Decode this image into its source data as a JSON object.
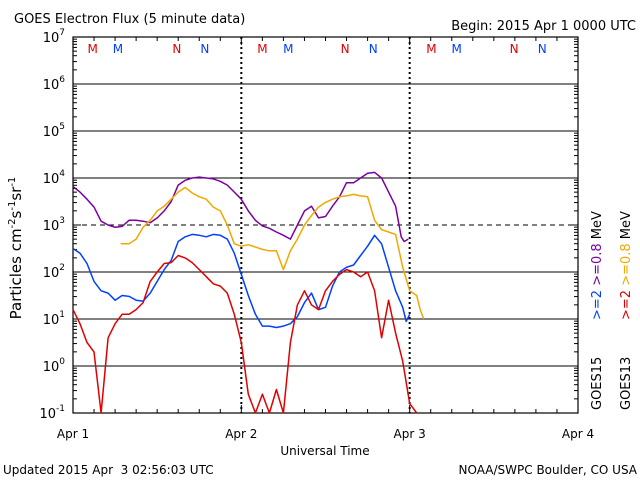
{
  "chart_data": {
    "type": "line",
    "title": "GOES Electron Flux (5 minute data)",
    "begin": "Begin: 2015 Apr 1 0000 UTC",
    "xlabel": "Universal Time",
    "ylabel_main": "Particles cm",
    "ylabel_exp1": "-2",
    "ylabel_mid1": "s",
    "ylabel_exp2": "-1",
    "ylabel_mid2": "sr",
    "ylabel_exp3": "-1",
    "footer_left": "Updated 2015 Apr  3 02:56:03 UTC",
    "footer_right": "NOAA/SWPC Boulder, CO USA",
    "x_range_hours": [
      0,
      72
    ],
    "x_ticks": [
      {
        "label": "Apr 1",
        "hour": 0
      },
      {
        "label": "Apr 2",
        "hour": 24
      },
      {
        "label": "Apr 3",
        "hour": 48
      },
      {
        "label": "Apr 4",
        "hour": 72
      }
    ],
    "y_log_range": [
      -1,
      7
    ],
    "y_ticks": [
      {
        "base": "10",
        "exp": "7",
        "e": 7
      },
      {
        "base": "10",
        "exp": "6",
        "e": 6
      },
      {
        "base": "10",
        "exp": "5",
        "e": 5
      },
      {
        "base": "10",
        "exp": "4",
        "e": 4
      },
      {
        "base": "10",
        "exp": "3",
        "e": 3
      },
      {
        "base": "10",
        "exp": "2",
        "e": 2
      },
      {
        "base": "10",
        "exp": "1",
        "e": 1
      },
      {
        "base": "10",
        "exp": "0",
        "e": 0
      },
      {
        "base": "10",
        "exp": "-1",
        "e": -1
      }
    ],
    "threshold_log": 3,
    "markers": [
      {
        "label": "M",
        "hour": 2.8,
        "color": "#e00000"
      },
      {
        "label": "M",
        "hour": 6.4,
        "color": "#0040ff"
      },
      {
        "label": "N",
        "hour": 14.8,
        "color": "#e00000"
      },
      {
        "label": "N",
        "hour": 18.8,
        "color": "#0040ff"
      },
      {
        "label": "M",
        "hour": 27.0,
        "color": "#e00000"
      },
      {
        "label": "M",
        "hour": 30.7,
        "color": "#0040ff"
      },
      {
        "label": "N",
        "hour": 38.8,
        "color": "#e00000"
      },
      {
        "label": "N",
        "hour": 42.8,
        "color": "#0040ff"
      },
      {
        "label": "M",
        "hour": 51.1,
        "color": "#e00000"
      },
      {
        "label": "M",
        "hour": 54.7,
        "color": "#0040ff"
      },
      {
        "label": "N",
        "hour": 62.9,
        "color": "#e00000"
      },
      {
        "label": "N",
        "hour": 66.9,
        "color": "#0040ff"
      }
    ],
    "legend_goes15": "GOES15",
    "legend_goes13": "GOES13",
    "legend": [
      {
        "label": ">=2",
        "unit": "",
        "color": "#0040ff",
        "column": 1
      },
      {
        "label": ">=0.8",
        "unit": "MeV",
        "color": "#7b00a0",
        "column": 1
      },
      {
        "label": ">=2",
        "unit": "",
        "color": "#e00000",
        "column": 2
      },
      {
        "label": ">=0.8",
        "unit": "MeV",
        "color": "#f0a800",
        "column": 2
      }
    ],
    "series": [
      {
        "name": "GOES15 >=0.8 MeV",
        "color": "#7b00a0",
        "points": [
          [
            0,
            3.82
          ],
          [
            1,
            3.7
          ],
          [
            2,
            3.55
          ],
          [
            3,
            3.38
          ],
          [
            4,
            3.08
          ],
          [
            5,
            3.0
          ],
          [
            6,
            2.95
          ],
          [
            7,
            2.97
          ],
          [
            8,
            3.1
          ],
          [
            9,
            3.1
          ],
          [
            10,
            3.08
          ],
          [
            11,
            3.05
          ],
          [
            12,
            3.15
          ],
          [
            13,
            3.3
          ],
          [
            14,
            3.5
          ],
          [
            15,
            3.85
          ],
          [
            16,
            3.95
          ],
          [
            17,
            4.0
          ],
          [
            18,
            4.02
          ],
          [
            19,
            4.0
          ],
          [
            20,
            3.98
          ],
          [
            21,
            3.93
          ],
          [
            22,
            3.85
          ],
          [
            23,
            3.7
          ],
          [
            24,
            3.55
          ],
          [
            25,
            3.3
          ],
          [
            26,
            3.1
          ],
          [
            27,
            2.98
          ],
          [
            28,
            2.93
          ],
          [
            29,
            2.85
          ],
          [
            30,
            2.78
          ],
          [
            31,
            2.7
          ],
          [
            32,
            3.0
          ],
          [
            33,
            3.3
          ],
          [
            34,
            3.4
          ],
          [
            35,
            3.15
          ],
          [
            36,
            3.18
          ],
          [
            37,
            3.4
          ],
          [
            38,
            3.6
          ],
          [
            39,
            3.9
          ],
          [
            40,
            3.9
          ],
          [
            41,
            4.0
          ],
          [
            42,
            4.1
          ],
          [
            43,
            4.12
          ],
          [
            44,
            4.0
          ],
          [
            45,
            3.7
          ],
          [
            46,
            3.4
          ],
          [
            46.8,
            2.75
          ],
          [
            47.2,
            2.65
          ],
          [
            47.8,
            2.7
          ]
        ]
      },
      {
        "name": "GOES13 >=0.8 MeV",
        "color": "#f0a800",
        "points": [
          [
            6.8,
            2.6
          ],
          [
            8,
            2.6
          ],
          [
            9,
            2.7
          ],
          [
            10,
            2.95
          ],
          [
            11,
            3.1
          ],
          [
            12,
            3.3
          ],
          [
            13,
            3.4
          ],
          [
            14,
            3.55
          ],
          [
            15,
            3.7
          ],
          [
            16,
            3.8
          ],
          [
            17,
            3.68
          ],
          [
            18,
            3.6
          ],
          [
            19,
            3.55
          ],
          [
            20,
            3.38
          ],
          [
            21,
            3.3
          ],
          [
            22,
            3.0
          ],
          [
            23,
            2.6
          ],
          [
            24,
            2.55
          ],
          [
            25,
            2.58
          ],
          [
            26,
            2.53
          ],
          [
            27,
            2.48
          ],
          [
            28,
            2.45
          ],
          [
            29,
            2.45
          ],
          [
            30,
            2.05
          ],
          [
            31,
            2.45
          ],
          [
            32,
            2.7
          ],
          [
            33,
            3.0
          ],
          [
            34,
            3.2
          ],
          [
            35,
            3.38
          ],
          [
            36,
            3.48
          ],
          [
            37,
            3.55
          ],
          [
            38,
            3.6
          ],
          [
            39,
            3.62
          ],
          [
            40,
            3.65
          ],
          [
            41,
            3.62
          ],
          [
            42,
            3.6
          ],
          [
            43,
            3.1
          ],
          [
            44,
            2.9
          ],
          [
            45,
            2.85
          ],
          [
            46,
            2.8
          ],
          [
            47,
            2.1
          ],
          [
            48,
            1.6
          ],
          [
            49,
            1.5
          ],
          [
            49.5,
            1.2
          ],
          [
            50,
            1.0
          ]
        ]
      },
      {
        "name": "GOES15 >=2 MeV",
        "color": "#0040ff",
        "points": [
          [
            0,
            2.5
          ],
          [
            1,
            2.4
          ],
          [
            2,
            2.18
          ],
          [
            3,
            1.8
          ],
          [
            4,
            1.6
          ],
          [
            5,
            1.55
          ],
          [
            6,
            1.4
          ],
          [
            7,
            1.5
          ],
          [
            8,
            1.48
          ],
          [
            9,
            1.4
          ],
          [
            10,
            1.38
          ],
          [
            11,
            1.55
          ],
          [
            12,
            1.8
          ],
          [
            13,
            2.05
          ],
          [
            14,
            2.25
          ],
          [
            15,
            2.65
          ],
          [
            16,
            2.75
          ],
          [
            17,
            2.8
          ],
          [
            18,
            2.78
          ],
          [
            19,
            2.75
          ],
          [
            20,
            2.8
          ],
          [
            21,
            2.78
          ],
          [
            22,
            2.7
          ],
          [
            23,
            2.4
          ],
          [
            24,
            1.95
          ],
          [
            25,
            1.5
          ],
          [
            26,
            1.1
          ],
          [
            27,
            0.85
          ],
          [
            28,
            0.85
          ],
          [
            29,
            0.82
          ],
          [
            30,
            0.85
          ],
          [
            31,
            0.9
          ],
          [
            32,
            1.05
          ],
          [
            33,
            1.35
          ],
          [
            34,
            1.55
          ],
          [
            35,
            1.2
          ],
          [
            36,
            1.25
          ],
          [
            37,
            1.7
          ],
          [
            38,
            2.0
          ],
          [
            39,
            2.1
          ],
          [
            40,
            2.15
          ],
          [
            41,
            2.35
          ],
          [
            42,
            2.55
          ],
          [
            43,
            2.78
          ],
          [
            44,
            2.6
          ],
          [
            45,
            2.1
          ],
          [
            46,
            1.6
          ],
          [
            47,
            1.25
          ],
          [
            47.5,
            0.95
          ],
          [
            48,
            1.1
          ]
        ]
      },
      {
        "name": "GOES13 >=2 MeV",
        "color": "#e00000",
        "points": [
          [
            0,
            1.2
          ],
          [
            1,
            0.9
          ],
          [
            2,
            0.5
          ],
          [
            3,
            0.3
          ],
          [
            4,
            -1.0
          ],
          [
            5,
            0.6
          ],
          [
            6,
            0.9
          ],
          [
            7,
            1.1
          ],
          [
            8,
            1.1
          ],
          [
            9,
            1.2
          ],
          [
            10,
            1.35
          ],
          [
            11,
            1.8
          ],
          [
            12,
            2.0
          ],
          [
            13,
            2.18
          ],
          [
            14,
            2.2
          ],
          [
            15,
            2.35
          ],
          [
            16,
            2.3
          ],
          [
            17,
            2.2
          ],
          [
            18,
            2.05
          ],
          [
            19,
            1.9
          ],
          [
            20,
            1.75
          ],
          [
            21,
            1.7
          ],
          [
            22,
            1.55
          ],
          [
            23,
            1.1
          ],
          [
            24,
            0.5
          ],
          [
            25,
            -0.6
          ],
          [
            26,
            -1.0
          ],
          [
            27,
            -0.6
          ],
          [
            28,
            -1.0
          ],
          [
            29,
            -0.5
          ],
          [
            30,
            -1.0
          ],
          [
            31,
            0.5
          ],
          [
            32,
            1.3
          ],
          [
            33,
            1.6
          ],
          [
            34,
            1.3
          ],
          [
            35,
            1.2
          ],
          [
            36,
            1.6
          ],
          [
            37,
            1.8
          ],
          [
            38,
            1.95
          ],
          [
            39,
            2.05
          ],
          [
            40,
            2.0
          ],
          [
            41,
            1.9
          ],
          [
            42,
            2.0
          ],
          [
            43,
            1.6
          ],
          [
            44,
            0.6
          ],
          [
            45,
            1.4
          ],
          [
            46,
            0.7
          ],
          [
            47,
            0.1
          ],
          [
            48,
            -0.8
          ],
          [
            49,
            -1.0
          ]
        ]
      }
    ]
  }
}
